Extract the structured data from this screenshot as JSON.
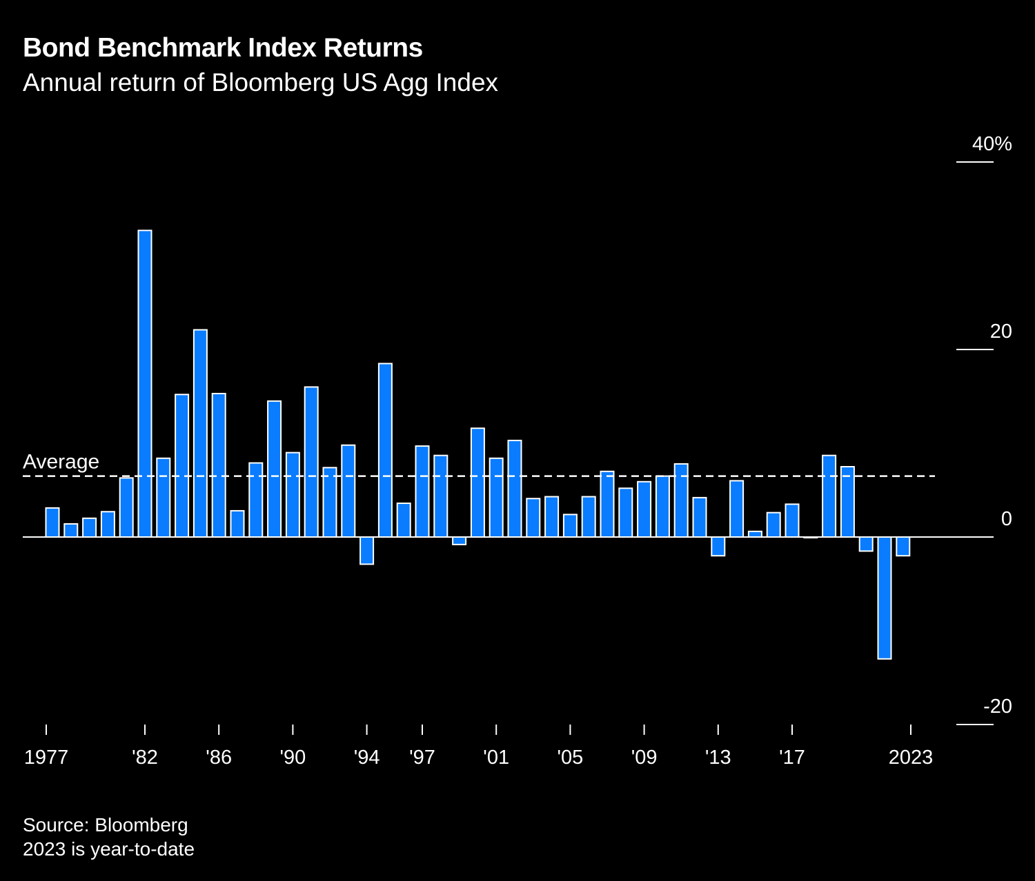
{
  "chart_data": {
    "type": "bar",
    "title": "Bond Benchmark Index Returns",
    "subtitle": "Annual return of Bloomberg US Agg Index",
    "xlabel": "",
    "ylabel": "",
    "ylim": [
      -20,
      40
    ],
    "yticks": [
      {
        "value": 40,
        "label": "40%"
      },
      {
        "value": 20,
        "label": "20"
      },
      {
        "value": 0,
        "label": "0"
      },
      {
        "value": -20,
        "label": "-20"
      }
    ],
    "xticks": [
      {
        "year": 1977,
        "label": "1977"
      },
      {
        "year": 1982,
        "label": "'82"
      },
      {
        "year": 1986,
        "label": "'86"
      },
      {
        "year": 1990,
        "label": "'90"
      },
      {
        "year": 1994,
        "label": "'94"
      },
      {
        "year": 1997,
        "label": "'97"
      },
      {
        "year": 2001,
        "label": "'01"
      },
      {
        "year": 2005,
        "label": "'05"
      },
      {
        "year": 2009,
        "label": "'09"
      },
      {
        "year": 2013,
        "label": "'13"
      },
      {
        "year": 2017,
        "label": "'17"
      },
      {
        "year": 2023,
        "label": "2023"
      }
    ],
    "categories": [
      1977,
      1978,
      1979,
      1980,
      1981,
      1982,
      1983,
      1984,
      1985,
      1986,
      1987,
      1988,
      1989,
      1990,
      1991,
      1992,
      1993,
      1994,
      1995,
      1996,
      1997,
      1998,
      1999,
      2000,
      2001,
      2002,
      2003,
      2004,
      2005,
      2006,
      2007,
      2008,
      2009,
      2010,
      2011,
      2012,
      2013,
      2014,
      2015,
      2016,
      2017,
      2018,
      2019,
      2020,
      2021,
      2022,
      2023
    ],
    "values": [
      3.1,
      1.4,
      2.0,
      2.7,
      6.3,
      32.7,
      8.4,
      15.2,
      22.1,
      15.3,
      2.8,
      7.9,
      14.5,
      9.0,
      16.0,
      7.4,
      9.8,
      -2.9,
      18.5,
      3.6,
      9.7,
      8.7,
      -0.8,
      11.6,
      8.4,
      10.3,
      4.1,
      4.3,
      2.4,
      4.3,
      7.0,
      5.2,
      5.9,
      6.5,
      7.8,
      4.2,
      -2.0,
      6.0,
      0.6,
      2.6,
      3.5,
      0.0,
      8.7,
      7.5,
      -1.5,
      -13.0,
      -2.0
    ],
    "average": {
      "label": "Average",
      "value": 6.5
    },
    "bar_color": "#0a7cff",
    "grid": false,
    "legend": "none"
  },
  "footer": {
    "source": "Source: Bloomberg",
    "note": "2023 is year-to-date"
  }
}
